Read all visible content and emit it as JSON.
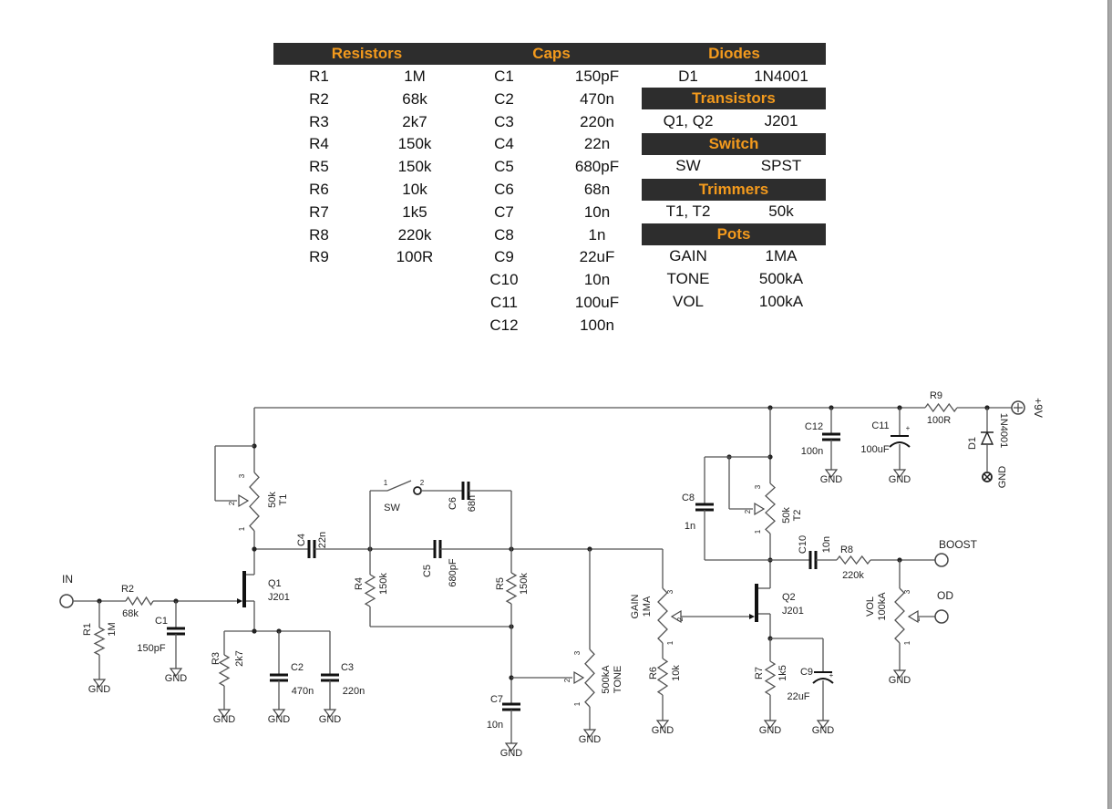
{
  "bom": {
    "resistors": {
      "title": "Resistors",
      "rows": [
        [
          "R1",
          "1M"
        ],
        [
          "R2",
          "68k"
        ],
        [
          "R3",
          "2k7"
        ],
        [
          "R4",
          "150k"
        ],
        [
          "R5",
          "150k"
        ],
        [
          "R6",
          "10k"
        ],
        [
          "R7",
          "1k5"
        ],
        [
          "R8",
          "220k"
        ],
        [
          "R9",
          "100R"
        ]
      ]
    },
    "caps": {
      "title": "Caps",
      "rows": [
        [
          "C1",
          "150pF"
        ],
        [
          "C2",
          "470n"
        ],
        [
          "C3",
          "220n"
        ],
        [
          "C4",
          "22n"
        ],
        [
          "C5",
          "680pF"
        ],
        [
          "C6",
          "68n"
        ],
        [
          "C7",
          "10n"
        ],
        [
          "C8",
          "1n"
        ],
        [
          "C9",
          "22uF"
        ],
        [
          "C10",
          "10n"
        ],
        [
          "C11",
          "100uF"
        ],
        [
          "C12",
          "100n"
        ]
      ]
    },
    "diodes": {
      "title": "Diodes",
      "rows": [
        [
          "D1",
          "1N4001"
        ]
      ]
    },
    "transistors": {
      "title": "Transistors",
      "rows": [
        [
          "Q1, Q2",
          "J201"
        ]
      ]
    },
    "switch": {
      "title": "Switch",
      "rows": [
        [
          "SW",
          "SPST"
        ]
      ]
    },
    "trimmers": {
      "title": "Trimmers",
      "rows": [
        [
          "T1, T2",
          "50k"
        ]
      ]
    },
    "pots": {
      "title": "Pots",
      "rows": [
        [
          "GAIN",
          "1MA"
        ],
        [
          "TONE",
          "500kA"
        ],
        [
          "VOL",
          "100kA"
        ]
      ]
    }
  },
  "header_color": "#2d2d2d",
  "header_text_color": "#f39a1d",
  "schematic": {
    "parts": {
      "R1": {
        "ref": "R1",
        "value": "1M"
      },
      "R2": {
        "ref": "R2",
        "value": "68k"
      },
      "R3": {
        "ref": "R3",
        "value": "2k7"
      },
      "R4": {
        "ref": "R4",
        "value": "150k"
      },
      "R5": {
        "ref": "R5",
        "value": "150k"
      },
      "R6": {
        "ref": "R6",
        "value": "10k"
      },
      "R7": {
        "ref": "R7",
        "value": "1k5"
      },
      "R8": {
        "ref": "R8",
        "value": "220k"
      },
      "R9": {
        "ref": "R9",
        "value": "100R"
      },
      "C1": {
        "ref": "C1",
        "value": "150pF"
      },
      "C2": {
        "ref": "C2",
        "value": "470n"
      },
      "C3": {
        "ref": "C3",
        "value": "220n"
      },
      "C4": {
        "ref": "C4",
        "value": "22n"
      },
      "C5": {
        "ref": "C5",
        "value": "680pF"
      },
      "C6": {
        "ref": "C6",
        "value": "68n"
      },
      "C7": {
        "ref": "C7",
        "value": "10n"
      },
      "C8": {
        "ref": "C8",
        "value": "1n"
      },
      "C9": {
        "ref": "C9",
        "value": "22uF"
      },
      "C10": {
        "ref": "C10",
        "value": "10n"
      },
      "C11": {
        "ref": "C11",
        "value": "100uF"
      },
      "C12": {
        "ref": "C12",
        "value": "100n"
      },
      "Q1": {
        "ref": "Q1",
        "value": "J201"
      },
      "Q2": {
        "ref": "Q2",
        "value": "J201"
      },
      "T1": {
        "ref": "T1",
        "value": "50k"
      },
      "T2": {
        "ref": "T2",
        "value": "50k"
      },
      "GAIN": {
        "ref": "GAIN",
        "value": "1MA"
      },
      "TONE": {
        "ref": "TONE",
        "value": "500kA"
      },
      "VOL": {
        "ref": "VOL",
        "value": "100kA"
      },
      "D1": {
        "ref": "D1",
        "value": "1N4001"
      },
      "SW": {
        "ref": "SW"
      }
    },
    "terminals": {
      "in": "IN",
      "boost": "BOOST",
      "od": "OD",
      "vcc": "+9V"
    },
    "gnd": "GND",
    "plus": "+",
    "pins": {
      "p1": "1",
      "p2": "2",
      "p3": "3"
    }
  }
}
